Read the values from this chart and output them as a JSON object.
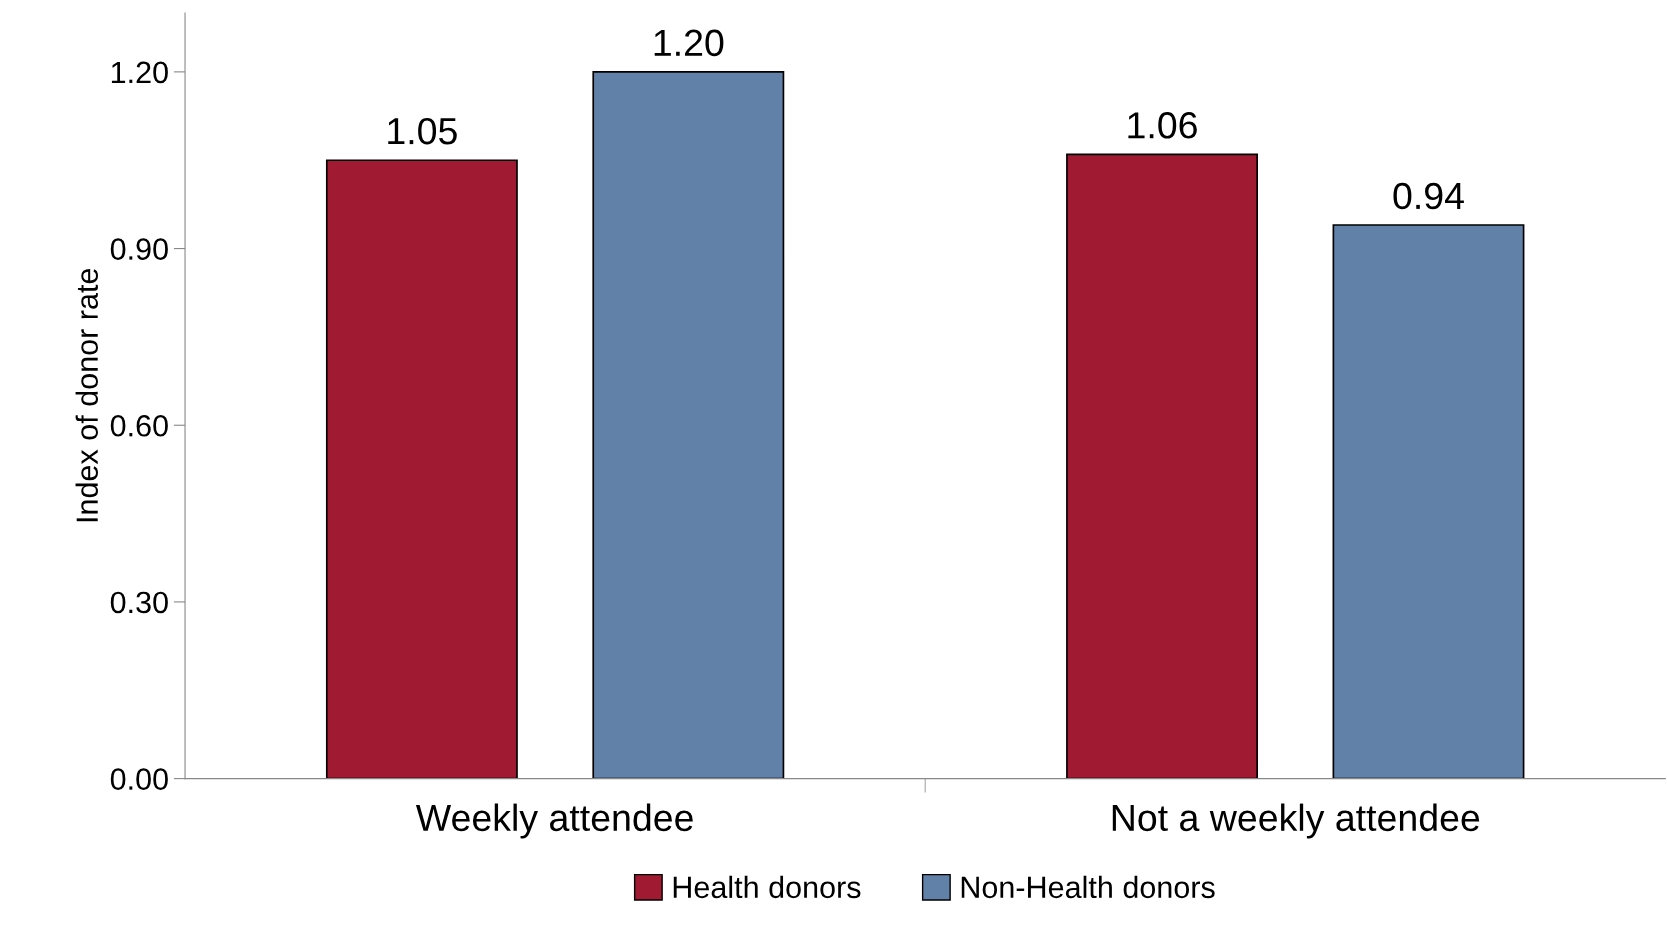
{
  "chart_data": {
    "type": "bar",
    "ylabel": "Index of donor rate",
    "categories": [
      "Weekly attendee",
      "Not a weekly attendee"
    ],
    "series": [
      {
        "name": "Health donors",
        "color": "#a01a32",
        "values": [
          1.05,
          1.06
        ],
        "value_labels": [
          "1.05",
          "1.06"
        ]
      },
      {
        "name": "Non-Health donors",
        "color": "#6281a8",
        "values": [
          1.2,
          0.94
        ],
        "value_labels": [
          "1.20",
          "0.94"
        ]
      }
    ],
    "ylim": [
      0,
      1.3
    ],
    "yticks": [
      {
        "value": 0,
        "label": "0.00"
      },
      {
        "value": 0.3,
        "label": "0.30"
      },
      {
        "value": 0.6,
        "label": "0.60"
      },
      {
        "value": 0.9,
        "label": "0.90"
      },
      {
        "value": 1.2,
        "label": "1.20"
      }
    ],
    "grid": false,
    "legend": "bottom"
  }
}
